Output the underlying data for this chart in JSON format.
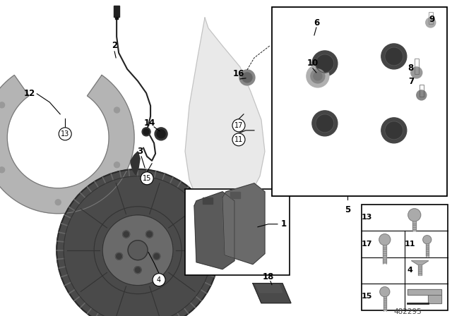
{
  "bg_color": "#ffffff",
  "part_number": "482295",
  "disc_color": "#555555",
  "shield_color": "#aaaaaa",
  "caliper_color": "#555555",
  "pad_color": "#666666",
  "hardware_color": "#888888",
  "line_color": "#333333"
}
